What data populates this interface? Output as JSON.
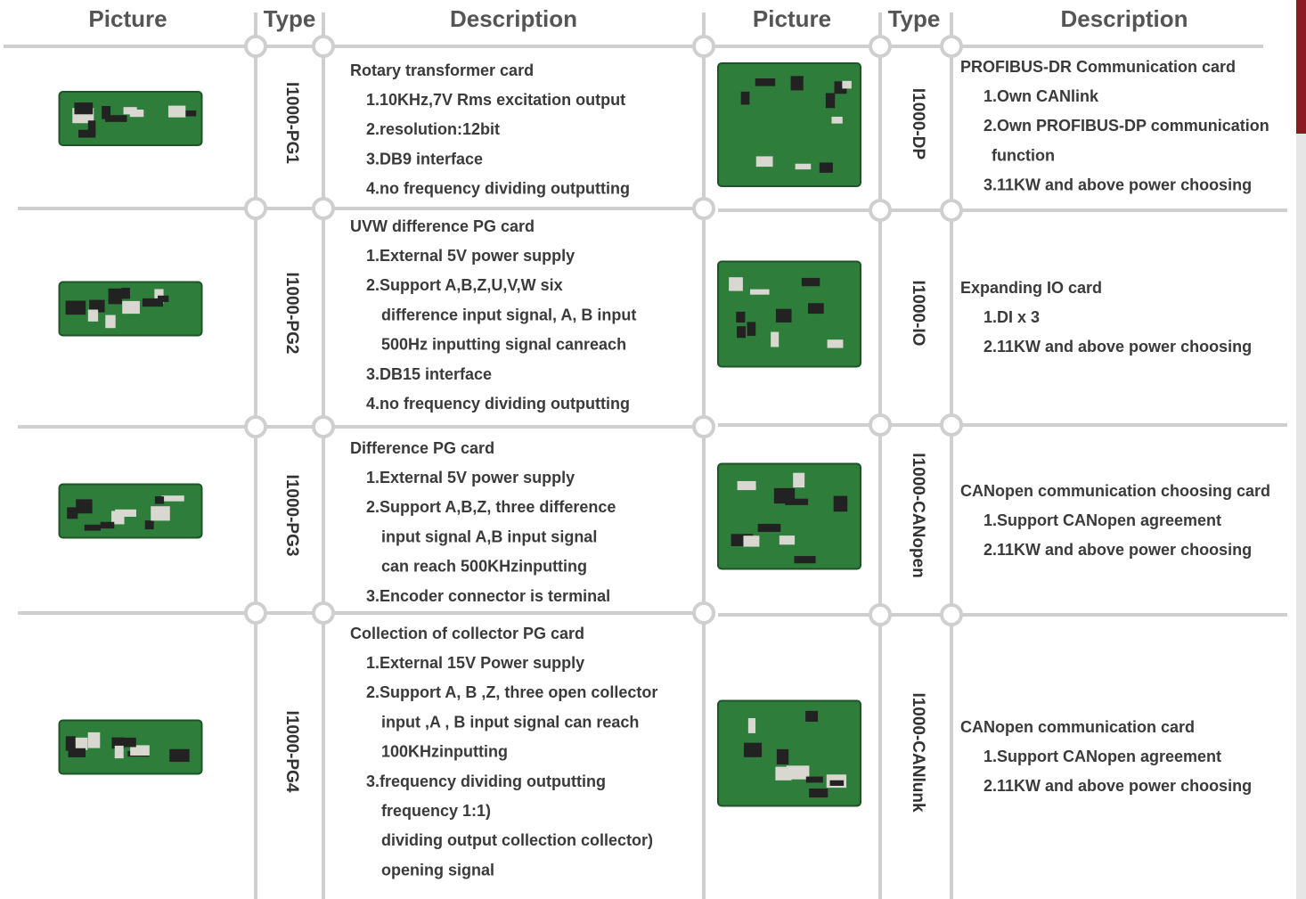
{
  "header": {
    "left": [
      "Picture",
      "Type",
      "Description"
    ],
    "right": [
      "Picture",
      "Type",
      "Description"
    ]
  },
  "left_rows": [
    {
      "type": "I1000-PG1",
      "lines": [
        "Rotary transformer card",
        "1.10KHz,7V Rms excitation output",
        "2.resolution:12bit",
        "3.DB9 interface",
        "4.no frequency dividing outputting"
      ]
    },
    {
      "type": "I1000-PG2",
      "lines": [
        "UVW difference PG card",
        "1.External 5V power supply",
        "2.Support A,B,Z,U,V,W six",
        "difference input signal, A, B input",
        "500Hz inputting signal canreach",
        "3.DB15 interface",
        "4.no frequency dividing outputting"
      ]
    },
    {
      "type": "I1000-PG3",
      "lines": [
        "Difference PG card",
        "1.External 5V power supply",
        "2.Support A,B,Z, three difference",
        "input signal A,B input signal",
        "can reach 500KHzinputting",
        "3.Encoder connector is terminal"
      ]
    },
    {
      "type": "I1000-PG4",
      "lines": [
        "Collection of collector PG card",
        "1.External 15V Power supply",
        "2.Support A, B ,Z, three open collector",
        "input ,A , B input signal can reach",
        "100KHzinputting",
        "3.frequency dividing outputting",
        "frequency 1:1)",
        "dividing output collection collector)",
        "opening signal"
      ]
    }
  ],
  "right_rows": [
    {
      "type": "I1000-DP",
      "lines": [
        "PROFIBUS-DR Communication card",
        "1.Own CANlink",
        "2.Own PROFIBUS-DP communication",
        "function",
        "3.11KW and above power choosing"
      ]
    },
    {
      "type": "I1000-IO",
      "lines": [
        "Expanding IO card",
        "1.DI x 3",
        "2.11KW and above power choosing"
      ]
    },
    {
      "type": "I1000-CANopen",
      "lines": [
        "CANopen communication choosing card",
        "1.Support CANopen agreement",
        "2.11KW and above power choosing"
      ]
    },
    {
      "type": "I1000-CANlunk",
      "lines": [
        "CANopen communication card",
        "1.Support CANopen agreement",
        "2.11KW and above power choosing"
      ]
    }
  ]
}
